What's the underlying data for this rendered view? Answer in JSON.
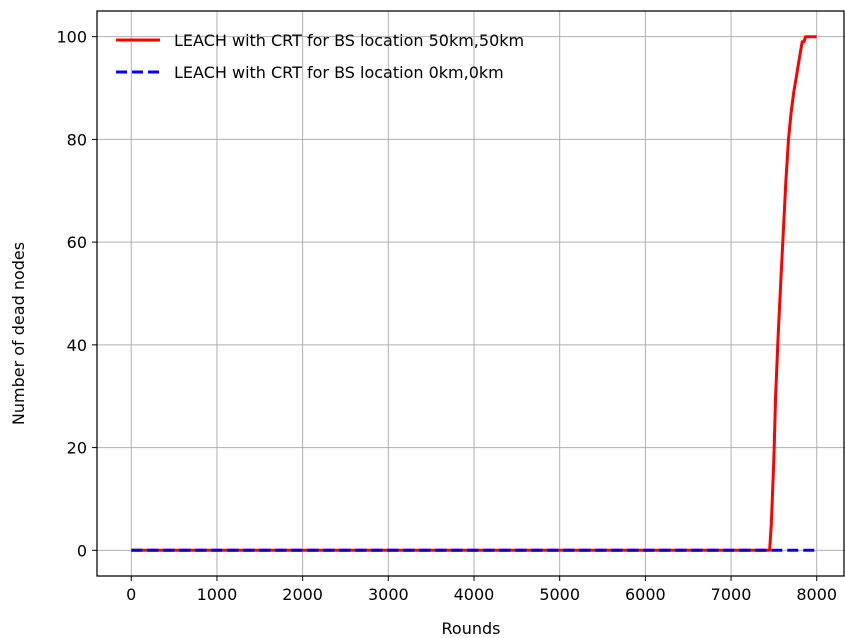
{
  "chart_data": {
    "type": "line",
    "title": "",
    "xlabel": "Rounds",
    "ylabel": "Number of dead nodes",
    "xlim": [
      -400,
      8330
    ],
    "ylim": [
      -5,
      105
    ],
    "xticks": [
      0,
      1000,
      2000,
      3000,
      4000,
      5000,
      6000,
      7000,
      8000
    ],
    "yticks": [
      0,
      20,
      40,
      60,
      80,
      100
    ],
    "grid": true,
    "legend_position": "top-left",
    "series": [
      {
        "name": "LEACH with CRT for BS location 50km,50km",
        "color": "#ff0000",
        "style": "solid",
        "x": [
          0,
          7450,
          7470,
          7500,
          7520,
          7550,
          7580,
          7610,
          7640,
          7670,
          7700,
          7730,
          7760,
          7790,
          7810,
          7830,
          7850,
          7870,
          7900,
          7950,
          8000
        ],
        "y": [
          0,
          0,
          5,
          18,
          30,
          42,
          52,
          62,
          72,
          80,
          85,
          89,
          92,
          95,
          97,
          99,
          99,
          100,
          100,
          100,
          100
        ]
      },
      {
        "name": "LEACH with CRT for BS location 0km,0km",
        "color": "#0000ff",
        "style": "dashed",
        "x": [
          0,
          8000
        ],
        "y": [
          0,
          0
        ]
      }
    ]
  }
}
